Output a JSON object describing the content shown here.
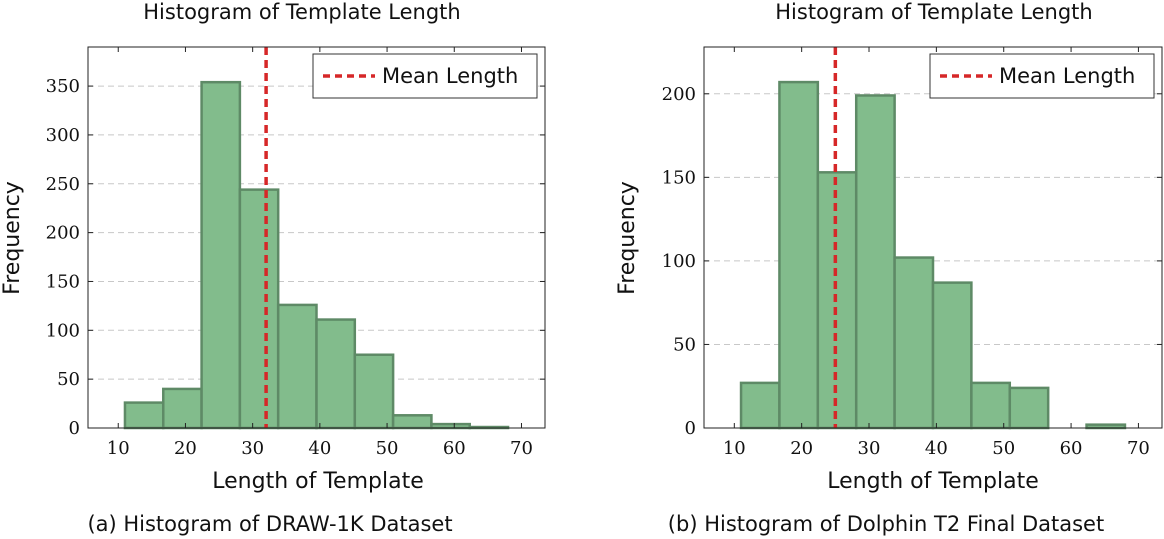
{
  "chart_data": [
    {
      "type": "bar",
      "title": "Histogram of Template Length",
      "xlabel": "Length of Template",
      "ylabel": "Frequency",
      "caption": "(a) Histogram of DRAW-1K Dataset",
      "bin_edges": [
        11,
        16.7,
        22.4,
        28.1,
        33.8,
        39.5,
        45.2,
        50.9,
        56.6,
        62.3,
        68
      ],
      "values": [
        26,
        40,
        354,
        244,
        126,
        111,
        75,
        13,
        4,
        1
      ],
      "mean_line": 32,
      "legend": "Mean Length",
      "xlim": [
        5.5,
        73.5
      ],
      "ylim": [
        0,
        390
      ],
      "xticks": [
        10,
        20,
        30,
        40,
        50,
        60,
        70
      ],
      "yticks": [
        0,
        50,
        100,
        150,
        200,
        250,
        300,
        350
      ],
      "grid": "horizontal dashed",
      "legend_position": "top-right",
      "colors": {
        "bar_fill": "#82bc8c",
        "bar_stroke": "#5e8a66",
        "mean": "#d62728"
      }
    },
    {
      "type": "bar",
      "title": "Histogram of Template Length",
      "xlabel": "Length of Template",
      "ylabel": "Frequency",
      "caption": "(b) Histogram of Dolphin T2 Final Dataset",
      "bin_edges": [
        11,
        16.7,
        22.4,
        28.1,
        33.8,
        39.5,
        45.2,
        50.9,
        56.6,
        62.3,
        68
      ],
      "values": [
        27,
        207,
        153,
        199,
        102,
        87,
        27,
        24,
        0,
        2
      ],
      "mean_line": 25,
      "legend": "Mean Length",
      "xlim": [
        5.5,
        73.5
      ],
      "ylim": [
        0,
        228
      ],
      "xticks": [
        10,
        20,
        30,
        40,
        50,
        60,
        70
      ],
      "yticks": [
        0,
        50,
        100,
        150,
        200
      ],
      "grid": "horizontal dashed",
      "legend_position": "top-right",
      "colors": {
        "bar_fill": "#82bc8c",
        "bar_stroke": "#5e8a66",
        "mean": "#d62728"
      }
    }
  ]
}
